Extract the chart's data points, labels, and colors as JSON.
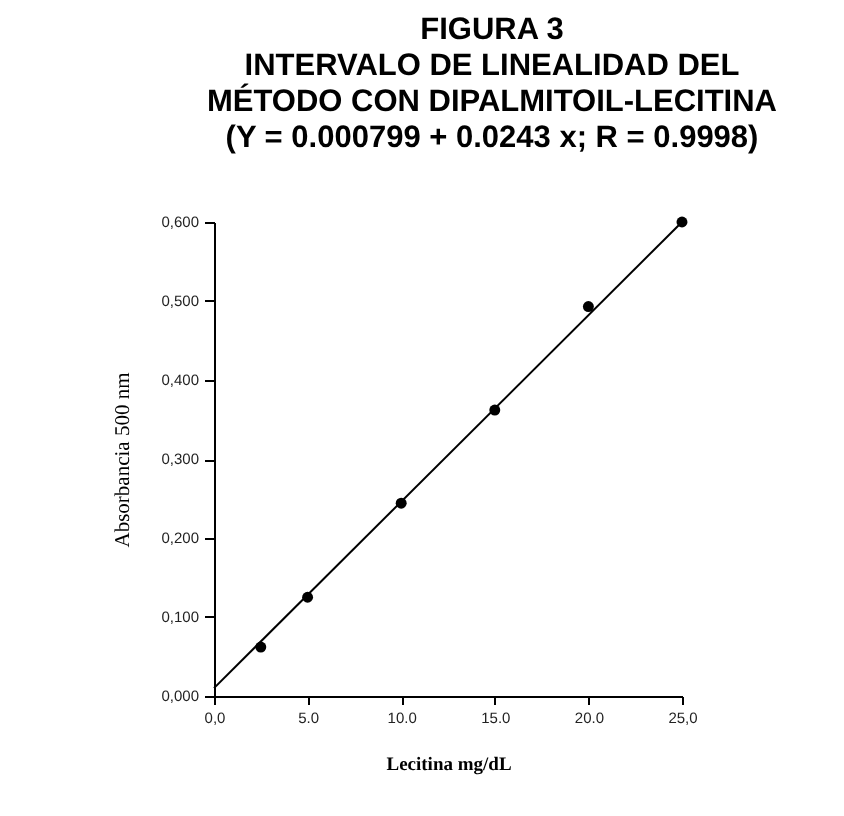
{
  "chart_data": {
    "type": "scatter",
    "title": "FIGURA 3\nINTERVALO DE LINEALIDAD DEL\nMÉTODO CON DIPALMITOIL-LECITINA\n(Y = 0.000799 + 0.0243 x; R = 0.9998)",
    "xlabel": "Lecitina mg/dL",
    "ylabel": "Absorbancia 500 nm",
    "xlim": [
      0,
      25
    ],
    "xticks": [
      {
        "value": 0,
        "label": "0,0"
      },
      {
        "value": 5,
        "label": "5.0"
      },
      {
        "value": 10,
        "label": "10.0"
      },
      {
        "value": 15,
        "label": "15.0"
      },
      {
        "value": 20,
        "label": "20.0"
      },
      {
        "value": 25,
        "label": "25,0"
      }
    ],
    "ylim": [
      0,
      0.6
    ],
    "yticks": [
      {
        "value": 0,
        "label": "0,000"
      },
      {
        "value": 0.1,
        "label": "0,100"
      },
      {
        "value": 0.2,
        "label": "0,200"
      },
      {
        "value": 0.3,
        "label": "0,300"
      },
      {
        "value": 0.4,
        "label": "0,400"
      },
      {
        "value": 0.5,
        "label": "0,500"
      },
      {
        "value": 0.6,
        "label": "0,600"
      }
    ],
    "marker": "circle",
    "series": [
      {
        "type": "scatter",
        "color": "#000000",
        "x": [
          2.5,
          5,
          10,
          15,
          20,
          25
        ],
        "values": [
          0.062,
          0.125,
          0.244,
          0.362,
          0.493,
          0.6
        ]
      },
      {
        "type": "line",
        "color": "#000000",
        "x": [
          0,
          25
        ],
        "values": [
          0.01,
          0.6
        ],
        "marker": "none"
      }
    ]
  }
}
